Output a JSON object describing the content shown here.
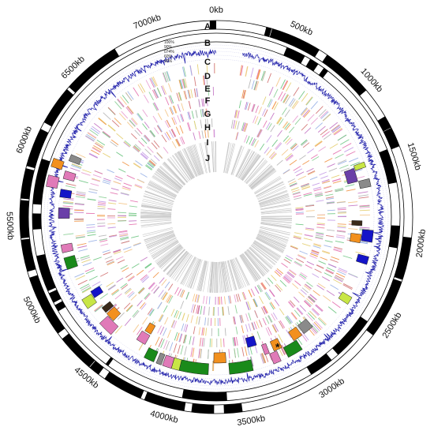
{
  "figure": {
    "genome_size_kb": 7400,
    "scale_labels": [
      "0kb",
      "500kb",
      "1000kb",
      "1500kb",
      "2000kb",
      "2500kb",
      "3000kb",
      "3500kb",
      "4000kb",
      "4500kb",
      "5000kb",
      "5500kb",
      "6000kb",
      "6500kb",
      "7000kb"
    ],
    "track_letters": [
      "A",
      "B",
      "C",
      "D",
      "E",
      "F",
      "G",
      "H",
      "I",
      "J"
    ],
    "gc_percent_labels": [
      "100%",
      "90%",
      "074%",
      "60%",
      "50%"
    ],
    "annotation_mark": "*"
  },
  "colors": {
    "gc_line": "#1a1aa8",
    "strand_black": "#000000",
    "cog_palette": [
      "#e9a3d4",
      "#77c98a",
      "#f4c88d",
      "#c9a3e8",
      "#e67bb4",
      "#8fd19a",
      "#b9b9b9",
      "#e6d27a",
      "#d47b7b",
      "#9fb6e8",
      "#f29b52",
      "#c77ec8"
    ],
    "track_j": "#c8c8c8",
    "island_palette": [
      "#1a8a1a",
      "#e07ab8",
      "#8a8a8a",
      "#f2901e",
      "#1414c8",
      "#6a3fa8",
      "#c8e646",
      "#3a2a1a",
      "#555555"
    ]
  },
  "islands": [
    {
      "start_kb": 1430,
      "end_kb": 1470,
      "color_index": 6,
      "track": "C"
    },
    {
      "start_kb": 1450,
      "end_kb": 1560,
      "color_index": 5,
      "track": "D"
    },
    {
      "start_kb": 1560,
      "end_kb": 1620,
      "color_index": 2,
      "track": "C"
    },
    {
      "start_kb": 1880,
      "end_kb": 1920,
      "color_index": 7,
      "track": "D"
    },
    {
      "start_kb": 1990,
      "end_kb": 2060,
      "color_index": 3,
      "track": "D"
    },
    {
      "start_kb": 1950,
      "end_kb": 2040,
      "color_index": 4,
      "track": "C"
    },
    {
      "start_kb": 2150,
      "end_kb": 2210,
      "color_index": 4,
      "track": "C"
    },
    {
      "start_kb": 2480,
      "end_kb": 2540,
      "color_index": 6,
      "track": "C"
    },
    {
      "start_kb": 2850,
      "end_kb": 2940,
      "color_index": 2,
      "track": "D"
    },
    {
      "start_kb": 2960,
      "end_kb": 3040,
      "color_index": 3,
      "track": "D"
    },
    {
      "start_kb": 3020,
      "end_kb": 3140,
      "color_index": 0,
      "track": "C"
    },
    {
      "start_kb": 3150,
      "end_kb": 3220,
      "color_index": 3,
      "track": "D"
    },
    {
      "start_kb": 3200,
      "end_kb": 3260,
      "color_index": 1,
      "track": "C"
    },
    {
      "start_kb": 3260,
      "end_kb": 3300,
      "color_index": 1,
      "track": "D"
    },
    {
      "start_kb": 3340,
      "end_kb": 3420,
      "color_index": 4,
      "track": "E"
    },
    {
      "start_kb": 3420,
      "end_kb": 3600,
      "color_index": 0,
      "track": "C"
    },
    {
      "start_kb": 3620,
      "end_kb": 3720,
      "color_index": 3,
      "track": "D"
    },
    {
      "start_kb": 3760,
      "end_kb": 3980,
      "color_index": 0,
      "track": "C"
    },
    {
      "start_kb": 3980,
      "end_kb": 4040,
      "color_index": 6,
      "track": "C"
    },
    {
      "start_kb": 4040,
      "end_kb": 4110,
      "color_index": 1,
      "track": "C"
    },
    {
      "start_kb": 4120,
      "end_kb": 4160,
      "color_index": 2,
      "track": "C"
    },
    {
      "start_kb": 4180,
      "end_kb": 4260,
      "color_index": 0,
      "track": "C"
    },
    {
      "start_kb": 4300,
      "end_kb": 4380,
      "color_index": 1,
      "track": "D"
    },
    {
      "start_kb": 4300,
      "end_kb": 4360,
      "color_index": 3,
      "track": "E"
    },
    {
      "start_kb": 4560,
      "end_kb": 4680,
      "color_index": 1,
      "track": "C"
    },
    {
      "start_kb": 4620,
      "end_kb": 4700,
      "color_index": 3,
      "track": "D"
    },
    {
      "start_kb": 4710,
      "end_kb": 4760,
      "color_index": 7,
      "track": "D"
    },
    {
      "start_kb": 4820,
      "end_kb": 4900,
      "color_index": 6,
      "track": "C"
    },
    {
      "start_kb": 4860,
      "end_kb": 4920,
      "color_index": 4,
      "track": "D"
    },
    {
      "start_kb": 5150,
      "end_kb": 5240,
      "color_index": 0,
      "track": "C"
    },
    {
      "start_kb": 5280,
      "end_kb": 5340,
      "color_index": 1,
      "track": "C"
    },
    {
      "start_kb": 5540,
      "end_kb": 5620,
      "color_index": 5,
      "track": "C"
    },
    {
      "start_kb": 5700,
      "end_kb": 5760,
      "color_index": 4,
      "track": "C"
    },
    {
      "start_kb": 5760,
      "end_kb": 5840,
      "color_index": 1,
      "track": "B"
    },
    {
      "start_kb": 5840,
      "end_kb": 5900,
      "color_index": 1,
      "track": "C"
    },
    {
      "start_kb": 5900,
      "end_kb": 5960,
      "color_index": 3,
      "track": "B"
    },
    {
      "start_kb": 5980,
      "end_kb": 6030,
      "color_index": 2,
      "track": "C"
    }
  ]
}
